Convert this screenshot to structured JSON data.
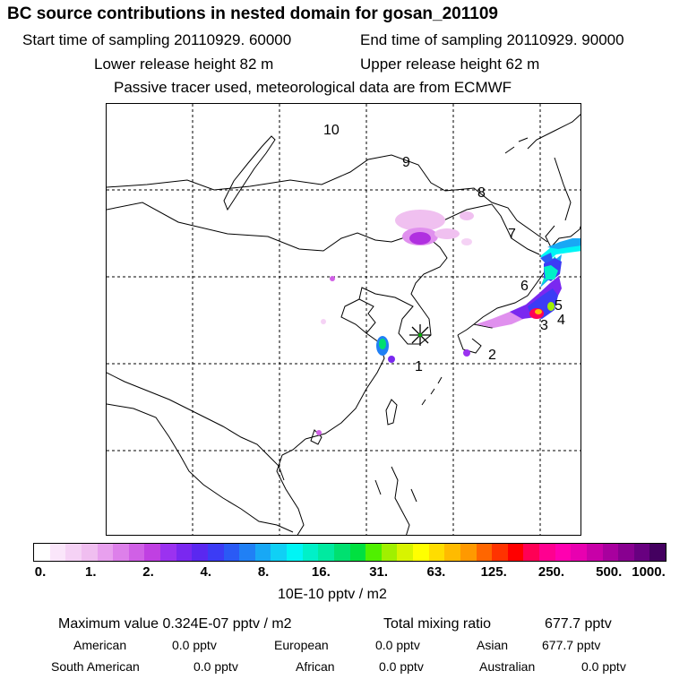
{
  "header": {
    "title": "BC  source contributions in nested domain for gosan_201109",
    "start_label": "Start time of sampling 20110929. 60000",
    "end_label": "End time of sampling 20110929. 90000",
    "lower_label": "Lower release height   82 m",
    "upper_label": "Upper release height   62 m",
    "tracer_note": "Passive tracer used, meteorological data are from ECMWF"
  },
  "map": {
    "region_labels": [
      "1",
      "2",
      "3",
      "4",
      "5",
      "6",
      "7",
      "8",
      "9",
      "10"
    ],
    "receptor_marker": "star-cross",
    "grid": true
  },
  "colorbar": {
    "colors": [
      "#ffffff",
      "#fae6fa",
      "#f5d2f5",
      "#f0bef0",
      "#e8a0ee",
      "#dd80ea",
      "#d060e6",
      "#c040e2",
      "#9b32f0",
      "#7a28f0",
      "#5a28f0",
      "#3c3cf5",
      "#2a5af5",
      "#2080f5",
      "#18a8f5",
      "#10d0f5",
      "#00f5f5",
      "#00f0c8",
      "#00eaa0",
      "#00e070",
      "#00e040",
      "#50f000",
      "#a0f000",
      "#d8f400",
      "#ffff00",
      "#ffdd00",
      "#ffbb00",
      "#ff9900",
      "#ff6600",
      "#ff3300",
      "#ff0000",
      "#ff0055",
      "#ff0090",
      "#ff00b0",
      "#e800b0",
      "#c800a8",
      "#a8009e",
      "#880090",
      "#680080",
      "#440060"
    ],
    "tick_labels": [
      "0.",
      "1.",
      "2.",
      "4.",
      "8.",
      "16.",
      "31.",
      "63.",
      "125.",
      "250.",
      "500.",
      "1000."
    ],
    "unit_label": "10E-10 pptv / m2"
  },
  "stats": {
    "max_label": "Maximum value  0.324E-07 pptv / m2",
    "total_label": "Total mixing ratio",
    "total_value": "677.7 pptv",
    "american_label": "American",
    "american_value": "0.0 pptv",
    "european_label": "European",
    "european_value": "0.0 pptv",
    "asian_label": "Asian",
    "asian_value": "677.7 pptv",
    "south_american_label": "South American",
    "south_american_value": "0.0 pptv",
    "african_label": "African",
    "african_value": "0.0 pptv",
    "australian_label": "Australian",
    "australian_value": "0.0 pptv"
  }
}
